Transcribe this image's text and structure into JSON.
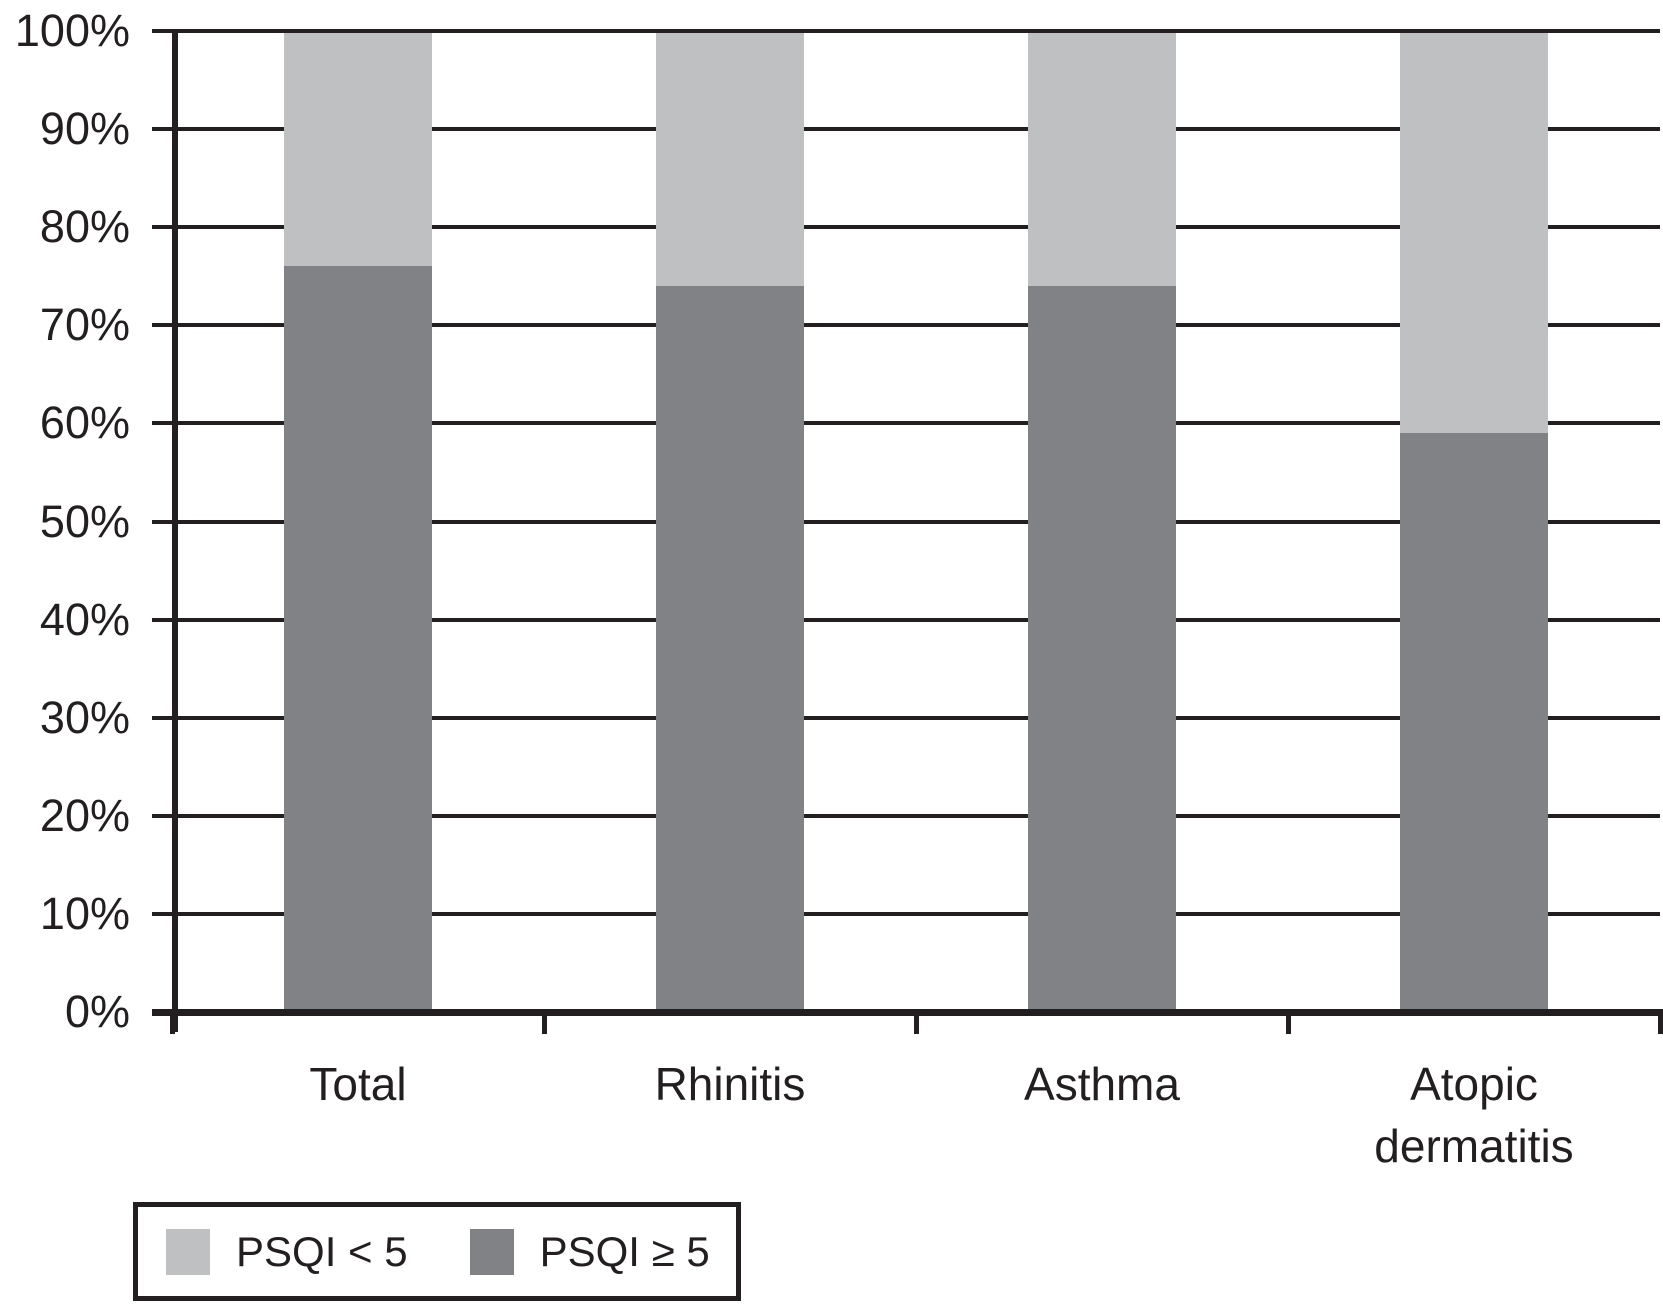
{
  "chart_data": {
    "type": "bar",
    "variant": "stacked-100-percent",
    "title": "",
    "xlabel": "",
    "ylabel": "",
    "categories": [
      "Total",
      "Rhinitis",
      "Asthma",
      "Atopic dermatitis"
    ],
    "series": [
      {
        "name": "PSQI ≥ 5",
        "color": "#808285",
        "values": [
          76,
          74,
          74,
          59
        ]
      },
      {
        "name": "PSQI < 5",
        "color": "#bec0c2",
        "values": [
          24,
          26,
          26,
          41
        ]
      }
    ],
    "ylim": [
      0,
      100
    ],
    "y_ticks": [
      "0%",
      "10%",
      "20%",
      "30%",
      "40%",
      "50%",
      "60%",
      "70%",
      "80%",
      "90%",
      "100%"
    ],
    "grid": true,
    "gridline_color": "#231f20",
    "legend_position": "bottom-left",
    "legend": [
      {
        "label": "PSQI < 5",
        "color": "#bec0c2"
      },
      {
        "label": "PSQI ≥ 5",
        "color": "#808285"
      }
    ]
  },
  "colors": {
    "line": "#231f20",
    "background": "#ffffff",
    "psqi_lt5": "#bec0c2",
    "psqi_ge5": "#808285"
  }
}
